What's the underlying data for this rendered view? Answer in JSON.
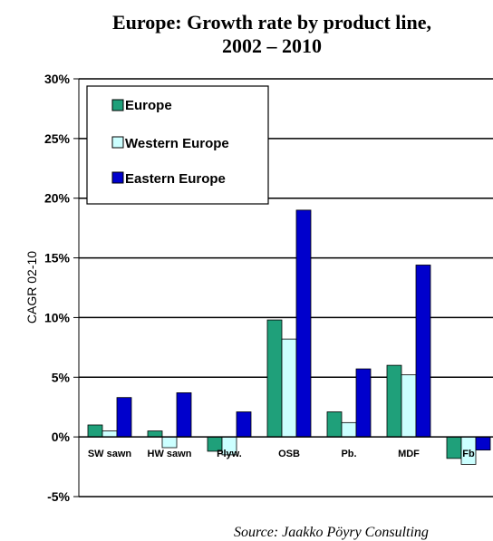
{
  "chart_data": {
    "type": "bar",
    "title_line1": "Europe: Growth rate by product line,",
    "title_line2": "2002 – 2010",
    "ylabel": "CAGR 02-10",
    "ylim": [
      -5,
      30
    ],
    "yticks": [
      "30%",
      "25%",
      "20%",
      "15%",
      "10%",
      "5%",
      "0%",
      "-5%"
    ],
    "ytick_values": [
      30,
      25,
      20,
      15,
      10,
      5,
      0,
      -5
    ],
    "grid": true,
    "legend_position": "top-left",
    "categories": [
      "SW sawn",
      "HW sawn",
      "Plyw.",
      "OSB",
      "Pb.",
      "MDF",
      "Fb"
    ],
    "series": [
      {
        "name": "Europe",
        "color": "#1fa07a",
        "values": [
          1.0,
          0.5,
          -1.2,
          9.8,
          2.1,
          6.0,
          -1.8
        ]
      },
      {
        "name": "Western Europe",
        "color": "#ccffff",
        "values": [
          0.5,
          -0.9,
          -1.5,
          8.2,
          1.2,
          5.2,
          -2.3
        ]
      },
      {
        "name": "Eastern Europe",
        "color": "#0000cc",
        "values": [
          3.3,
          3.7,
          2.1,
          19.0,
          5.7,
          14.4,
          -1.1
        ]
      }
    ],
    "source": "Source: Jaakko Pöyry Consulting"
  }
}
